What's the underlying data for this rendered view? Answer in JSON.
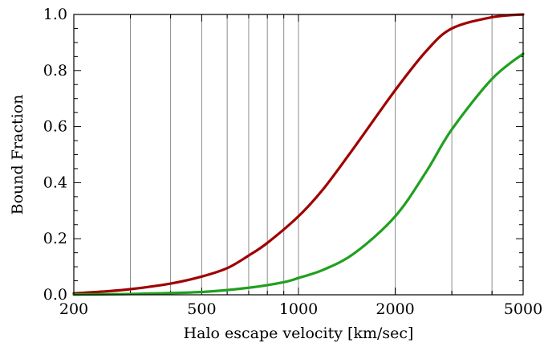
{
  "chart_data": {
    "type": "line",
    "xlabel": "Halo escape velocity [km/sec]",
    "ylabel": "Bound Fraction",
    "x_scale": "log",
    "xlim": [
      200,
      5000
    ],
    "ylim": [
      0,
      1
    ],
    "x_ticks": [
      200,
      500,
      1000,
      2000,
      5000
    ],
    "x_tick_labels": [
      "200",
      "500",
      "1000",
      "2000",
      "5000"
    ],
    "y_ticks": [
      0.0,
      0.2,
      0.4,
      0.6,
      0.8,
      1.0
    ],
    "y_tick_labels": [
      "0.0",
      "0.2",
      "0.4",
      "0.6",
      "0.8",
      "1.0"
    ],
    "x_gridlines": [
      300,
      400,
      500,
      600,
      700,
      800,
      900,
      1000,
      2000,
      3000,
      4000
    ],
    "grid": "vertical",
    "legend": "none",
    "series": [
      {
        "color": "#a00000",
        "x": [
          200,
          250,
          300,
          400,
          500,
          600,
          700,
          800,
          1000,
          1200,
          1500,
          2000,
          2500,
          3000,
          4000,
          5000
        ],
        "y": [
          0.005,
          0.012,
          0.02,
          0.04,
          0.065,
          0.095,
          0.14,
          0.185,
          0.28,
          0.38,
          0.53,
          0.73,
          0.87,
          0.95,
          0.99,
          1.0
        ]
      },
      {
        "color": "#20a020",
        "x": [
          200,
          300,
          500,
          700,
          900,
          1000,
          1200,
          1500,
          2000,
          2500,
          3000,
          4000,
          5000
        ],
        "y": [
          0.001,
          0.003,
          0.01,
          0.025,
          0.045,
          0.06,
          0.09,
          0.15,
          0.28,
          0.44,
          0.59,
          0.77,
          0.86
        ]
      }
    ]
  }
}
